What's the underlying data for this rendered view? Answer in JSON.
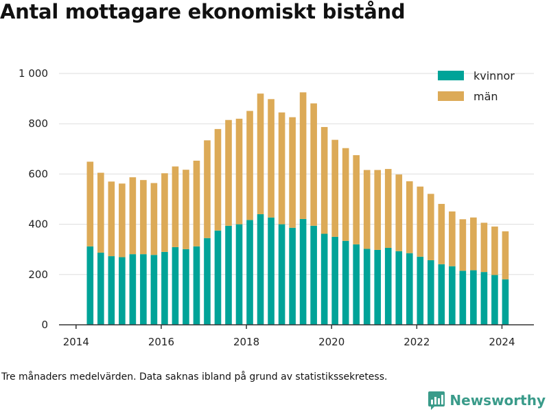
{
  "page": {
    "title": "Antal mottagare ekonomiskt bistånd",
    "footnote": "Tre månaders medelvärden. Data saknas ibland på grund av statistikssekretess.",
    "brand": "Newsworthy"
  },
  "colors": {
    "kvinnor": "#00a398",
    "man": "#dcaa57",
    "grid": "#dddddd",
    "axis": "#333333",
    "brand": "#3a9b8a"
  },
  "chart_data": {
    "type": "bar",
    "stacked": true,
    "x_unit": "year",
    "x": [
      2014.33,
      2014.58,
      2014.83,
      2015.08,
      2015.33,
      2015.58,
      2015.83,
      2016.08,
      2016.33,
      2016.58,
      2016.83,
      2017.08,
      2017.33,
      2017.58,
      2017.83,
      2018.08,
      2018.33,
      2018.58,
      2018.83,
      2019.08,
      2019.33,
      2019.58,
      2019.83,
      2020.08,
      2020.33,
      2020.58,
      2020.83,
      2021.08,
      2021.33,
      2021.58,
      2021.83,
      2022.08,
      2022.33,
      2022.58,
      2022.83,
      2023.08,
      2023.33,
      2023.58,
      2023.83,
      2024.08
    ],
    "series": [
      {
        "name": "kvinnor",
        "values": [
          312,
          287,
          273,
          269,
          281,
          281,
          278,
          290,
          309,
          301,
          312,
          345,
          375,
          394,
          400,
          417,
          440,
          427,
          400,
          386,
          421,
          394,
          362,
          350,
          334,
          320,
          302,
          298,
          306,
          293,
          285,
          271,
          257,
          241,
          233,
          215,
          217,
          210,
          198,
          181
        ]
      },
      {
        "name": "män",
        "values": [
          337,
          318,
          297,
          293,
          306,
          295,
          286,
          313,
          321,
          316,
          341,
          389,
          404,
          421,
          420,
          434,
          480,
          471,
          445,
          440,
          504,
          487,
          425,
          386,
          369,
          355,
          314,
          318,
          314,
          305,
          286,
          279,
          264,
          240,
          218,
          205,
          210,
          196,
          193,
          191
        ]
      }
    ],
    "x_ticks": [
      "2014",
      "2016",
      "2018",
      "2020",
      "2022",
      "2024"
    ],
    "y_ticks": [
      "0",
      "200",
      "400",
      "600",
      "800",
      "1 000"
    ],
    "x_range": [
      2013.6,
      2024.75
    ],
    "ylim": [
      0,
      1000
    ],
    "grid": "horizontal",
    "legend_position": "top-right",
    "legend": [
      "kvinnor",
      "män"
    ]
  }
}
